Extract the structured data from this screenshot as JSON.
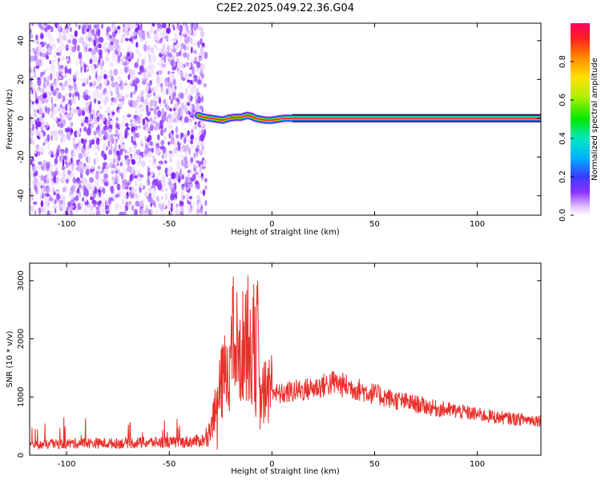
{
  "title": "C2E2.2025.049.22.36.G04",
  "chart_data": [
    {
      "type": "heatmap",
      "xlabel": "Height of straight line (km)",
      "ylabel": "Frequency (Hz)",
      "xlim": [
        -118,
        131
      ],
      "ylim": [
        -50,
        49
      ],
      "x_ticks": [
        -100,
        -50,
        0,
        50,
        100
      ],
      "x_tick_labels": [
        "-100",
        "-50",
        "0",
        "50",
        "100"
      ],
      "y_ticks": [
        -40,
        -20,
        0,
        20,
        40
      ],
      "y_tick_labels": [
        "-40",
        "-20",
        "0",
        "20",
        "40"
      ],
      "noise_region_x": [
        -118,
        -36
      ],
      "signal_trace": {
        "x": [
          -36,
          -33,
          -30,
          -27,
          -24,
          -21,
          -18,
          -15,
          -12,
          -10,
          -8,
          -6,
          -3,
          0,
          3,
          6,
          10,
          131
        ],
        "frequency": [
          1.5,
          0.5,
          0,
          -0.5,
          -1,
          0,
          0.5,
          0.5,
          1.5,
          1,
          0,
          -0.5,
          -1,
          -1,
          -0.5,
          0,
          0,
          0
        ]
      },
      "colorbar": {
        "label": "Normalized spectral amplitude",
        "range": [
          0,
          1
        ],
        "ticks": [
          0.0,
          0.2,
          0.4,
          0.6,
          0.8
        ],
        "tick_labels": [
          "0.0",
          "0.2",
          "0.4",
          "0.6",
          "0.8"
        ]
      },
      "grid": false
    },
    {
      "type": "line",
      "xlabel": "Height of straight line (km)",
      "ylabel": "SNR (10 * v/v)",
      "xlim": [
        -118,
        131
      ],
      "ylim": [
        0,
        3300
      ],
      "x_ticks": [
        -100,
        -50,
        0,
        50,
        100
      ],
      "x_tick_labels": [
        "-100",
        "-50",
        "0",
        "50",
        "100"
      ],
      "y_ticks": [
        0,
        1000,
        2000,
        3000
      ],
      "y_tick_labels": [
        "0",
        "1000",
        "2000",
        "3000"
      ],
      "series": [
        {
          "color": "#e8302b",
          "x": [
            -118,
            -110,
            -100,
            -90,
            -80,
            -70,
            -60,
            -50,
            -40,
            -35,
            -31,
            -30,
            -28,
            -26,
            -24,
            -22,
            -20,
            -18,
            -16,
            -14,
            -12,
            -10,
            -9,
            -8,
            -7,
            -6,
            -5,
            -4,
            -2,
            0,
            2,
            5,
            10,
            15,
            20,
            25,
            30,
            35,
            40,
            50,
            60,
            70,
            80,
            90,
            100,
            110,
            120,
            131
          ],
          "values": [
            170,
            180,
            200,
            210,
            200,
            210,
            220,
            220,
            230,
            250,
            280,
            560,
            700,
            1000,
            1300,
            1450,
            1700,
            2200,
            1500,
            1900,
            2100,
            1500,
            2800,
            1300,
            2200,
            900,
            1000,
            1050,
            1100,
            1200,
            1050,
            1050,
            1100,
            1120,
            1150,
            1200,
            1250,
            1200,
            1150,
            1050,
            950,
            880,
            800,
            760,
            700,
            650,
            620,
            600
          ]
        }
      ],
      "grid": false
    }
  ]
}
